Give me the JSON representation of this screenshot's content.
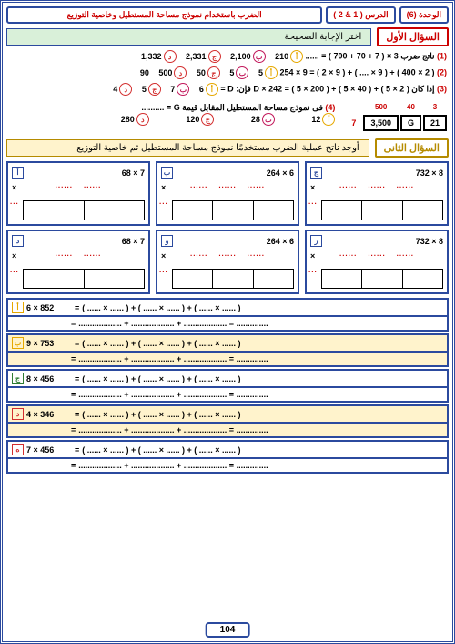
{
  "header": {
    "unit": "الوحدة (6)",
    "lesson": "الدرس ( 1 & 2 )",
    "title": "الضرب باستخدام نموذج مساحة المستطيل وخاصية التوزيع"
  },
  "q1": {
    "label": "السؤال الأول",
    "inst": "اختر الإجابة الصحيحة",
    "opts": {
      "a": "أ",
      "b": "ب",
      "c": "ج",
      "d": "د"
    },
    "l1": {
      "n": "(1)",
      "t": "ناتج ضرب 3 × ( 7 + 70 + 700 ) = ......",
      "a": "210",
      "b": "2,100",
      "c": "2,331",
      "d": "1,332"
    },
    "l2": {
      "n": "(2)",
      "t": "( 2 × 400 ) + ( 9 × .... ) + ( 9 × 2 ) =  9 × 254",
      "a": "5",
      "b": "5",
      "c": "50",
      "d": "500",
      "e": "90"
    },
    "l3": {
      "n": "(3)",
      "t": "إذا كان ( 2 × 5 ) + ( 40 × 5 ) + ( 200 × 5 ) = D × 242 فإن: D =",
      "a": "6",
      "b": "7",
      "c": "5",
      "d": "4"
    },
    "l4": {
      "n": "(4)",
      "t": "فى نموذج مساحة المستطيل المقابل قيمة  G = ..........",
      "a": "12",
      "b": "28",
      "c": "120",
      "d": "280"
    },
    "tbl": {
      "h": [
        "500",
        "40",
        "3"
      ],
      "r": [
        "3,500",
        "G",
        "21"
      ],
      "side": "7"
    }
  },
  "q2": {
    "label": "السؤال الثانى",
    "inst": "أوجد ناتج عملية الضرب مستخدمًا نموذج مساحة المستطيل ثم خاصية التوزيع",
    "row1": [
      {
        "m": "أ",
        "t": "68  ×  7"
      },
      {
        "m": "ب",
        "t": "264  ×  6"
      },
      {
        "m": "ج",
        "t": "732  ×  8"
      }
    ],
    "row2": [
      {
        "m": "د",
        "t": "68  ×  7"
      },
      {
        "m": "و",
        "t": "264  ×  6"
      },
      {
        "m": "ز",
        "t": "732  ×  8"
      }
    ],
    "eq": [
      {
        "m": "أ",
        "c": "#e6a800",
        "p": "6  ×   852",
        "n": 3
      },
      {
        "m": "ب",
        "c": "#e6a800",
        "p": "9  ×   753",
        "n": 3,
        "hl": true
      },
      {
        "m": "ج",
        "c": "#2e7d32",
        "p": "8  ×   456",
        "n": 3
      },
      {
        "m": "د",
        "c": "#d32f2f",
        "p": "4  ×   346",
        "n": 3,
        "hl": true
      },
      {
        "m": "ه",
        "c": "#d32f2f",
        "p": "7  ×   456",
        "n": 3
      }
    ]
  },
  "page": "104",
  "dots": "......"
}
